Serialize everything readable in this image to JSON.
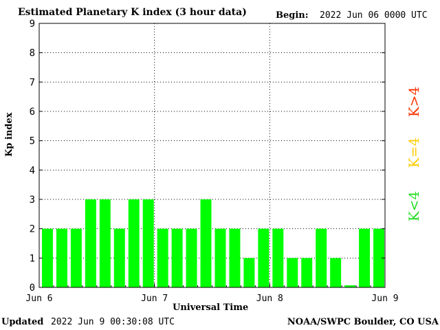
{
  "header": {
    "title": "Estimated Planetary K index (3 hour data)",
    "begin_label": "Begin:",
    "begin_value": "2022 Jun 06 0000 UTC"
  },
  "footer": {
    "updated_label": "Updated",
    "updated_value": "2022 Jun  9 00:30:08 UTC",
    "credit": "NOAA/SWPC Boulder, CO USA"
  },
  "legend": [
    {
      "text": "K<4",
      "color": "#22dd22"
    },
    {
      "text": "K=4",
      "color": "#ffcc00"
    },
    {
      "text": "K>4",
      "color": "#ff3300"
    }
  ],
  "chart_data": {
    "type": "bar",
    "title": "Estimated Planetary K index (3 hour data)",
    "xlabel": "Universal Time",
    "ylabel": "Kp index",
    "ylim": [
      0,
      9
    ],
    "yticks": [
      0,
      1,
      2,
      3,
      4,
      5,
      6,
      7,
      8,
      9
    ],
    "xticks": [
      "Jun 6",
      "Jun 7",
      "Jun 8",
      "Jun 9"
    ],
    "grid": true,
    "bar_color": "#00ff00",
    "bar_interval": "3 hour",
    "values": [
      2,
      2,
      2,
      3,
      3,
      2,
      3,
      3,
      2,
      2,
      2,
      3,
      2,
      2,
      1,
      2,
      2,
      1,
      1,
      2,
      1,
      0.07,
      2,
      2
    ]
  }
}
